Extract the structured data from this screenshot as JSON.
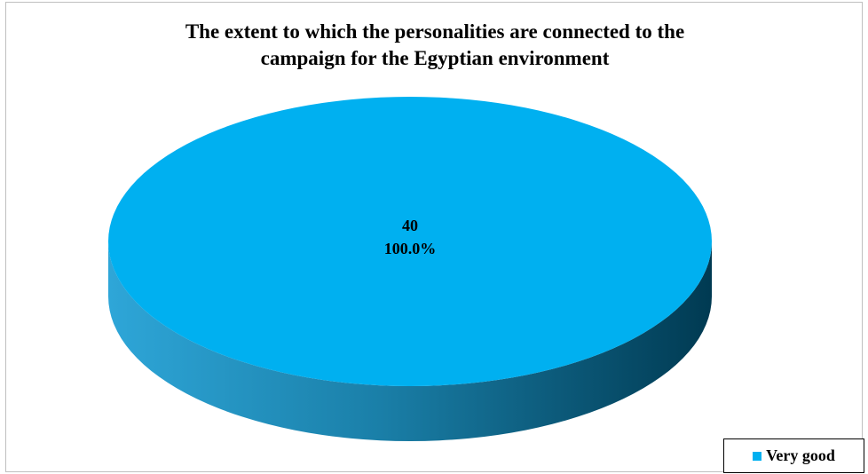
{
  "chart_data": {
    "type": "pie",
    "title_lines": [
      "The extent to which the personalities are connected to the",
      "campaign for the Egyptian environment"
    ],
    "categories": [
      "Very good"
    ],
    "values": [
      40
    ],
    "percent_labels": [
      "100.0%"
    ],
    "value_labels": [
      "40"
    ],
    "style": "3d",
    "legend_position": "bottom-right",
    "colors": {
      "slice_top": "#00b0f0",
      "slice_side_light": "#2ea6d8",
      "slice_side_dark": "#003a52"
    }
  }
}
